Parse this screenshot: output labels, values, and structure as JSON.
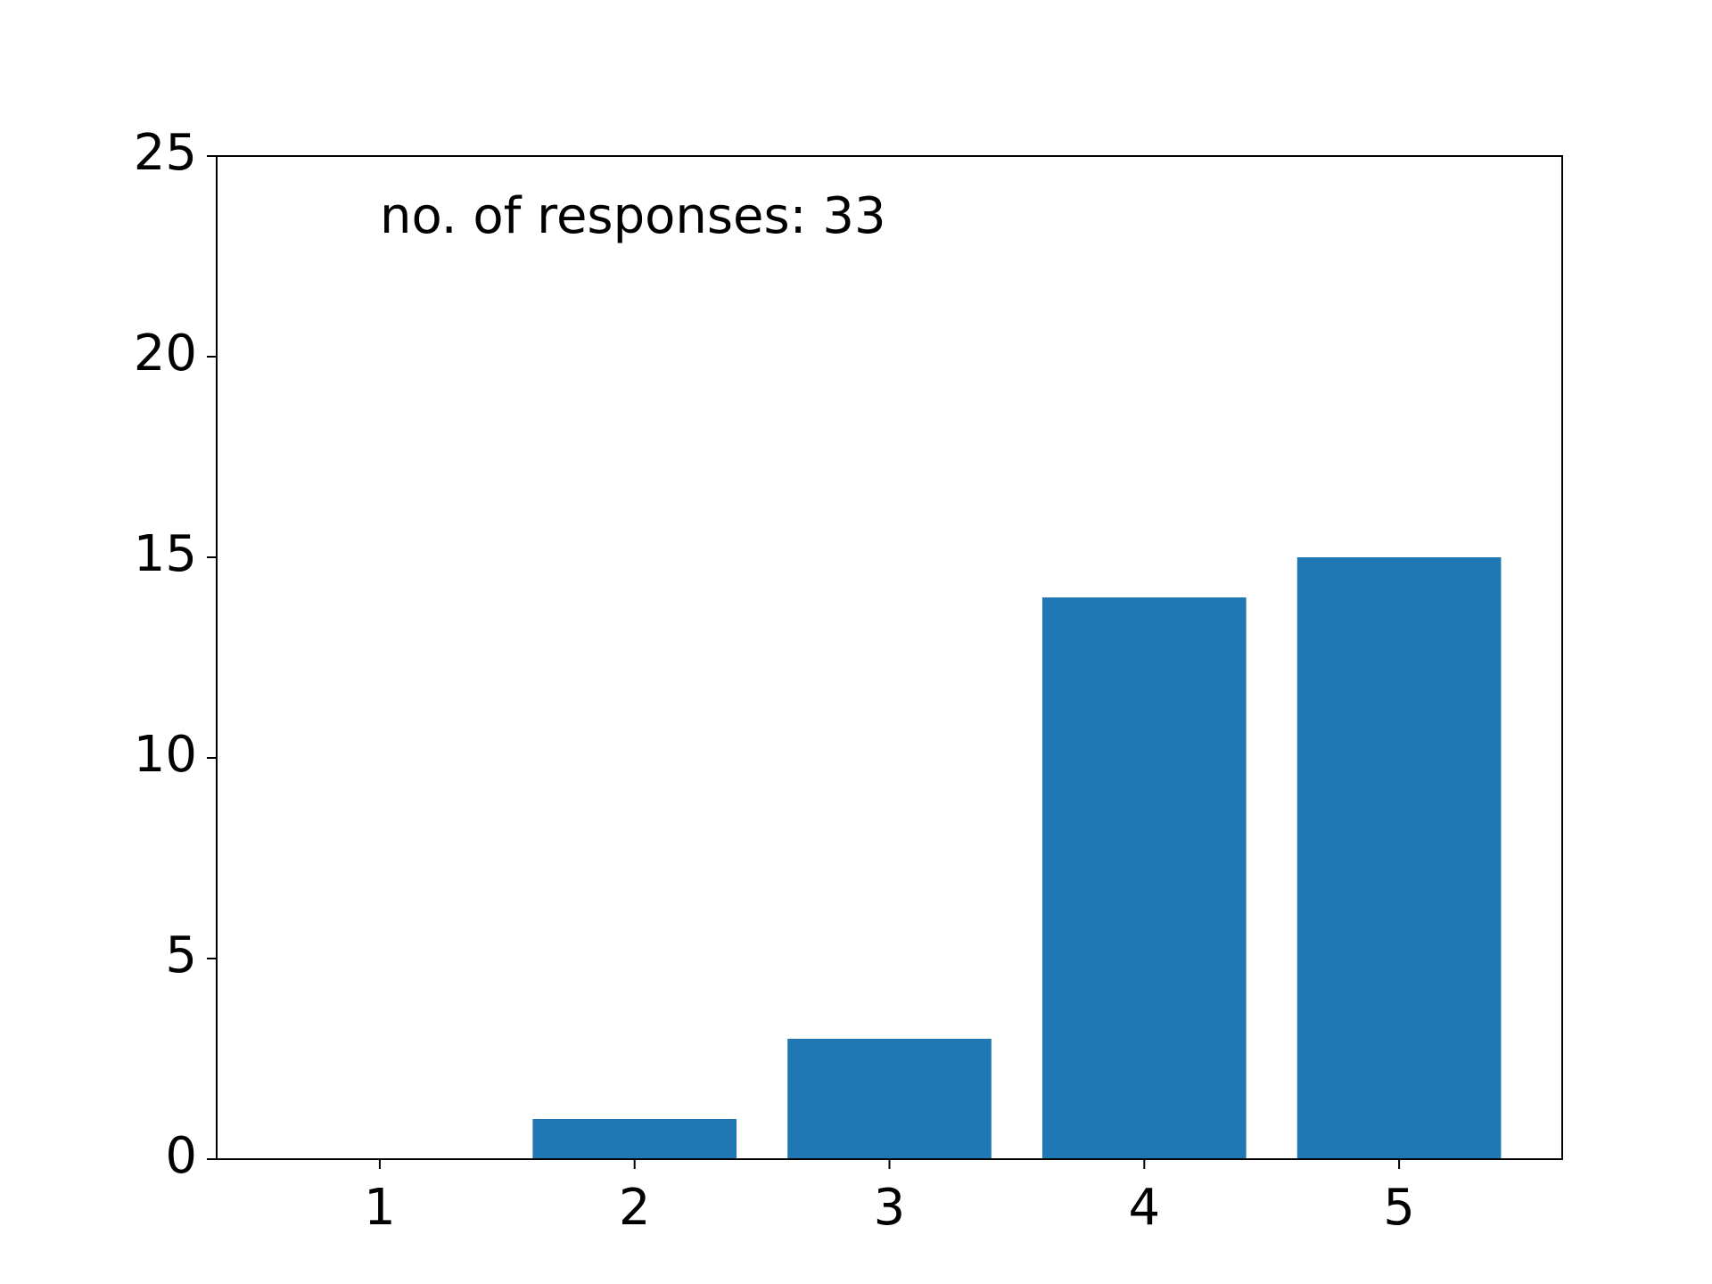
{
  "chart_data": {
    "type": "bar",
    "annotation": "no. of responses: 33",
    "x": [
      1,
      2,
      3,
      4,
      5
    ],
    "values": [
      0,
      1,
      3,
      14,
      15
    ],
    "color": "#1f77b4",
    "xlim": [
      0.36,
      5.64
    ],
    "xticks": [
      1,
      2,
      3,
      4,
      5
    ],
    "ylim": [
      0,
      25
    ],
    "yticks": [
      0,
      5,
      10,
      15,
      20,
      25
    ],
    "grid": false
  }
}
